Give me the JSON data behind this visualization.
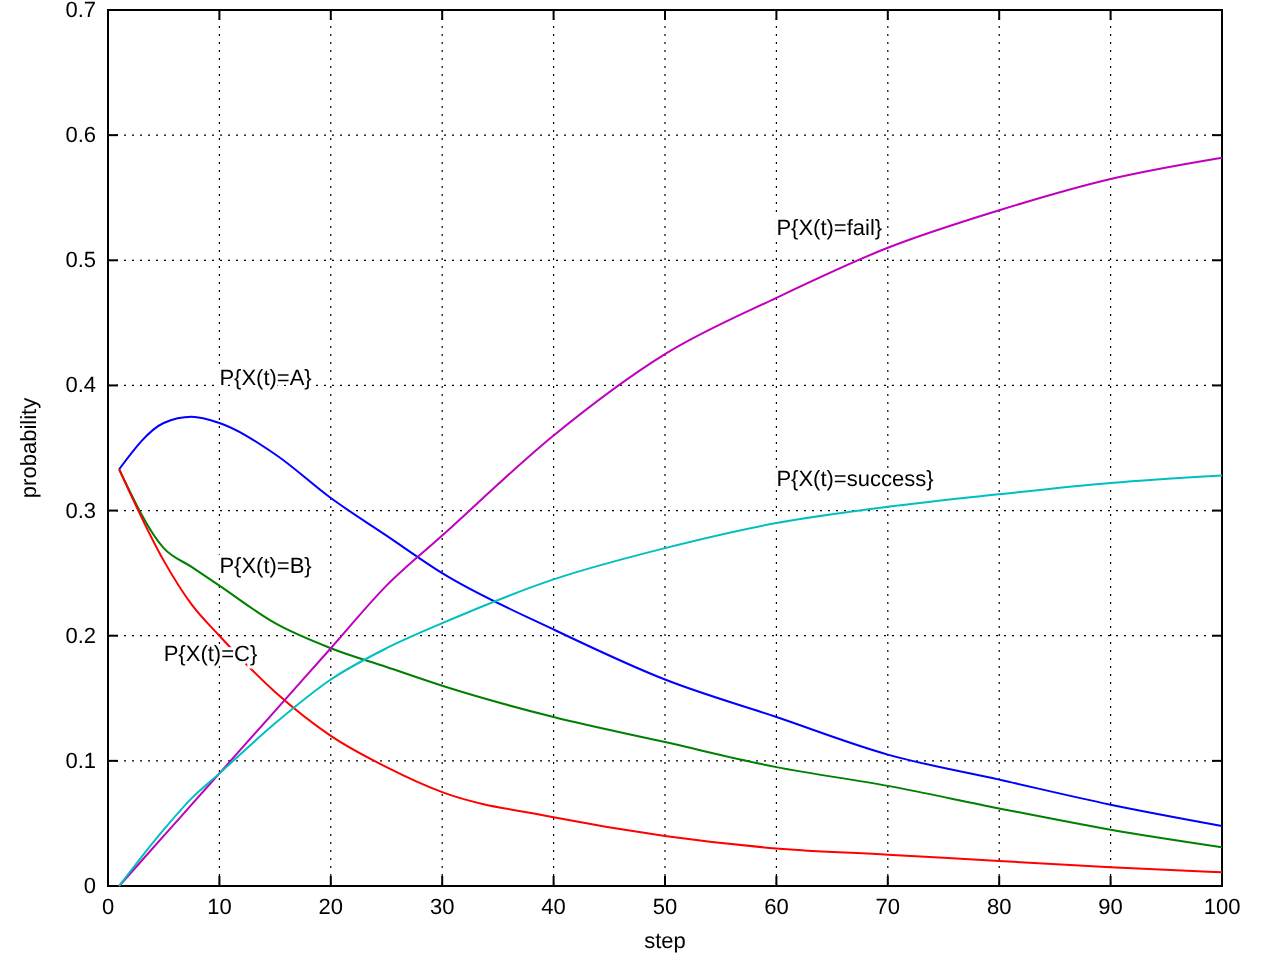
{
  "chart_data": {
    "type": "line",
    "xlabel": "step",
    "ylabel": "probability",
    "xlim": [
      0,
      100
    ],
    "ylim": [
      0,
      0.7
    ],
    "xticks": [
      0,
      10,
      20,
      30,
      40,
      50,
      60,
      70,
      80,
      90,
      100
    ],
    "yticks": [
      0,
      0.1,
      0.2,
      0.3,
      0.4,
      0.5,
      0.6,
      0.7
    ],
    "grid": true,
    "marker": "none",
    "line_style": "solid",
    "x": [
      1,
      5,
      7.5,
      10,
      15,
      20,
      25,
      30,
      40,
      50,
      60,
      70,
      80,
      90,
      100
    ],
    "series": [
      {
        "name": "P{X(t)=A}",
        "color": "#0000ff",
        "values": [
          0.333,
          0.37,
          0.375,
          0.37,
          0.345,
          0.31,
          0.28,
          0.25,
          0.205,
          0.165,
          0.135,
          0.105,
          0.085,
          0.065,
          0.048
        ]
      },
      {
        "name": "P{X(t)=B}",
        "color": "#008000",
        "values": [
          0.333,
          0.27,
          0.255,
          0.24,
          0.21,
          0.19,
          0.175,
          0.16,
          0.135,
          0.115,
          0.095,
          0.08,
          0.062,
          0.045,
          0.031
        ]
      },
      {
        "name": "P{X(t)=C}",
        "color": "#ff0000",
        "values": [
          0.333,
          0.26,
          0.225,
          0.2,
          0.155,
          0.12,
          0.095,
          0.075,
          0.055,
          0.04,
          0.03,
          0.025,
          0.02,
          0.015,
          0.011
        ]
      },
      {
        "name": "P{X(t)=fail}",
        "color": "#bf00bf",
        "values": [
          0,
          0.04,
          0.065,
          0.09,
          0.14,
          0.19,
          0.24,
          0.28,
          0.36,
          0.425,
          0.47,
          0.51,
          0.54,
          0.565,
          0.582
        ]
      },
      {
        "name": "P{X(t)=success}",
        "color": "#00bfbf",
        "values": [
          0,
          0.045,
          0.07,
          0.09,
          0.13,
          0.165,
          0.19,
          0.21,
          0.245,
          0.27,
          0.29,
          0.303,
          0.313,
          0.322,
          0.328
        ]
      }
    ]
  }
}
